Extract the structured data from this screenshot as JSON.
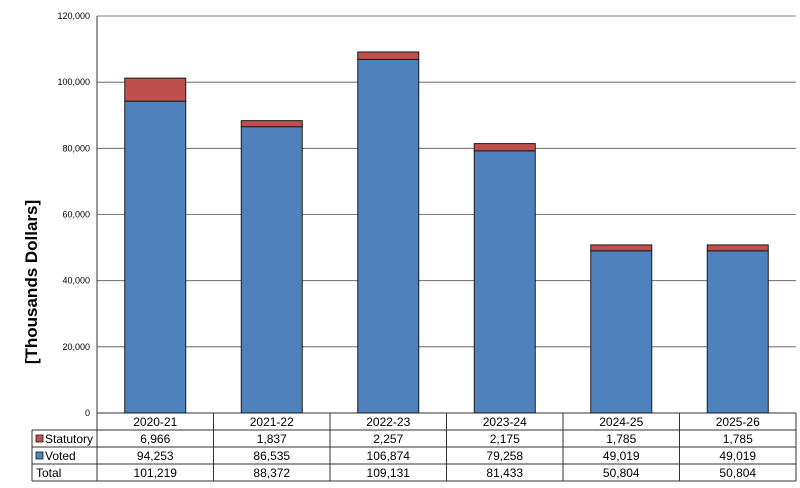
{
  "chart_data": {
    "type": "bar",
    "stacked": true,
    "ylabel": "[Thousands Dollars]",
    "ylim": [
      0,
      120000
    ],
    "yticks": [
      "0",
      "20,000",
      "40,000",
      "60,000",
      "80,000",
      "100,000",
      "120,000"
    ],
    "grid": true,
    "legend": "data-table-left",
    "categories": [
      "2020-21",
      "2021-22",
      "2022-23",
      "2023-24",
      "2024-25",
      "2025-26"
    ],
    "series": [
      {
        "name": "Voted",
        "color": "#4f81bd",
        "values": [
          94253,
          86535,
          106874,
          79258,
          49019,
          49019
        ],
        "labels": [
          "94,253",
          "86,535",
          "106,874",
          "79,258",
          "49,019",
          "49,019"
        ]
      },
      {
        "name": "Statutory",
        "color": "#c0504d",
        "values": [
          6966,
          1837,
          2257,
          2175,
          1785,
          1785
        ],
        "labels": [
          "6,966",
          "1,837",
          "2,257",
          "2,175",
          "1,785",
          "1,785"
        ]
      }
    ],
    "total_row": {
      "name": "Total",
      "labels": [
        "101,219",
        "88,372",
        "109,131",
        "81,433",
        "50,804",
        "50,804"
      ]
    }
  }
}
